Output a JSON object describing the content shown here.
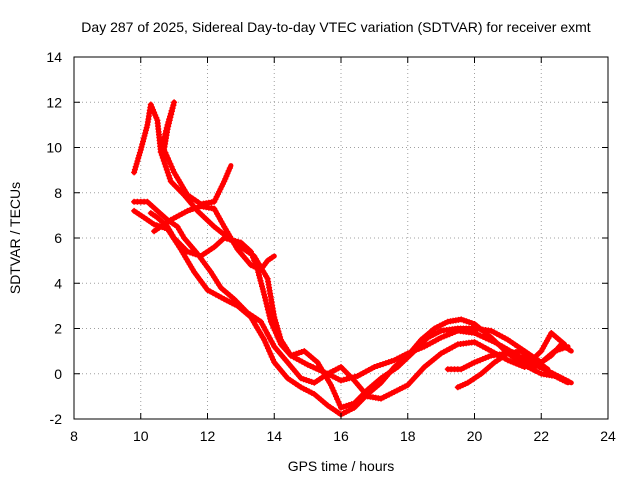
{
  "chart_data": {
    "type": "line",
    "title": "Day 287 of 2025, Sidereal Day-to-day VTEC variation (SDTVAR) for receiver exmt",
    "xlabel": "GPS time / hours",
    "ylabel": "SDTVAR / TECUs",
    "xlim": [
      8,
      24
    ],
    "ylim": [
      -2,
      14
    ],
    "xticks": [
      "8",
      "10",
      "12",
      "14",
      "16",
      "18",
      "20",
      "22",
      "24"
    ],
    "yticks": [
      "-2",
      "0",
      "2",
      "4",
      "6",
      "8",
      "10",
      "12",
      "14"
    ],
    "grid": true,
    "color": "#ff0000",
    "series": [
      {
        "name": "pass-1",
        "points": [
          [
            9.8,
            8.9
          ],
          [
            10.0,
            9.9
          ],
          [
            10.2,
            11.0
          ],
          [
            10.3,
            11.9
          ],
          [
            10.5,
            11.2
          ],
          [
            10.6,
            9.8
          ],
          [
            10.9,
            8.5
          ],
          [
            11.3,
            7.9
          ],
          [
            11.7,
            7.2
          ],
          [
            12.2,
            6.5
          ],
          [
            12.8,
            5.8
          ],
          [
            13.4,
            5.2
          ],
          [
            13.8,
            4.2
          ],
          [
            14.0,
            2.5
          ],
          [
            14.2,
            1.5
          ],
          [
            14.5,
            0.8
          ],
          [
            15.0,
            0.4
          ],
          [
            15.6,
            0.0
          ],
          [
            16.0,
            -0.3
          ],
          [
            16.5,
            -0.1
          ],
          [
            17.0,
            0.3
          ],
          [
            17.6,
            0.6
          ],
          [
            18.0,
            0.9
          ],
          [
            18.5,
            1.2
          ],
          [
            19.0,
            1.6
          ],
          [
            19.5,
            1.9
          ],
          [
            20.0,
            1.8
          ],
          [
            20.6,
            1.4
          ],
          [
            21.2,
            0.9
          ],
          [
            21.8,
            0.3
          ],
          [
            22.3,
            0.8
          ],
          [
            22.6,
            1.3
          ],
          [
            22.9,
            1.0
          ]
        ]
      },
      {
        "name": "pass-2",
        "points": [
          [
            10.3,
            7.1
          ],
          [
            10.5,
            6.9
          ],
          [
            10.8,
            6.5
          ],
          [
            11.0,
            6.0
          ],
          [
            11.4,
            5.4
          ],
          [
            11.8,
            5.2
          ],
          [
            12.2,
            5.6
          ],
          [
            12.5,
            6.0
          ],
          [
            13.0,
            5.8
          ],
          [
            13.3,
            5.4
          ],
          [
            13.5,
            4.6
          ],
          [
            13.7,
            3.5
          ],
          [
            13.9,
            2.3
          ],
          [
            14.2,
            1.3
          ],
          [
            14.5,
            0.8
          ],
          [
            14.9,
            1.0
          ],
          [
            15.3,
            0.5
          ],
          [
            15.7,
            -0.5
          ],
          [
            16.0,
            -1.5
          ],
          [
            16.4,
            -1.3
          ],
          [
            16.8,
            -0.7
          ],
          [
            17.2,
            -0.2
          ],
          [
            17.7,
            0.3
          ],
          [
            18.2,
            1.0
          ],
          [
            18.6,
            1.6
          ],
          [
            19.0,
            1.9
          ],
          [
            19.5,
            2.0
          ],
          [
            20.0,
            2.0
          ],
          [
            20.5,
            1.9
          ],
          [
            21.0,
            1.5
          ],
          [
            21.5,
            1.0
          ],
          [
            22.0,
            0.5
          ],
          [
            22.4,
            1.0
          ],
          [
            22.8,
            1.2
          ]
        ]
      },
      {
        "name": "pass-3",
        "points": [
          [
            9.8,
            7.2
          ],
          [
            10.1,
            6.9
          ],
          [
            10.4,
            6.6
          ],
          [
            10.8,
            6.4
          ],
          [
            11.2,
            5.5
          ],
          [
            11.6,
            4.5
          ],
          [
            12.0,
            3.7
          ],
          [
            12.5,
            3.3
          ],
          [
            12.9,
            3.0
          ],
          [
            13.3,
            2.5
          ],
          [
            13.7,
            1.5
          ],
          [
            14.0,
            0.5
          ],
          [
            14.4,
            -0.2
          ],
          [
            14.8,
            -0.6
          ],
          [
            15.2,
            -0.9
          ],
          [
            15.6,
            -1.4
          ],
          [
            16.0,
            -1.8
          ],
          [
            16.4,
            -1.5
          ],
          [
            16.8,
            -0.9
          ],
          [
            17.2,
            -0.4
          ],
          [
            17.6,
            0.3
          ],
          [
            18.0,
            0.8
          ],
          [
            18.4,
            1.5
          ],
          [
            18.8,
            2.0
          ],
          [
            19.2,
            2.3
          ],
          [
            19.6,
            2.4
          ],
          [
            20.0,
            2.2
          ],
          [
            20.5,
            1.6
          ],
          [
            21.0,
            0.9
          ],
          [
            21.6,
            0.3
          ],
          [
            22.0,
            0.0
          ],
          [
            22.4,
            -0.1
          ],
          [
            22.8,
            -0.4
          ]
        ]
      },
      {
        "name": "pass-4",
        "points": [
          [
            9.8,
            7.6
          ],
          [
            10.2,
            7.6
          ],
          [
            10.5,
            7.2
          ],
          [
            10.8,
            6.8
          ],
          [
            11.1,
            6.5
          ],
          [
            11.3,
            6.0
          ],
          [
            11.7,
            5.3
          ],
          [
            12.1,
            4.5
          ],
          [
            12.4,
            3.8
          ],
          [
            12.8,
            3.3
          ],
          [
            13.2,
            2.7
          ],
          [
            13.6,
            2.3
          ],
          [
            14.0,
            1.2
          ],
          [
            14.4,
            0.5
          ],
          [
            14.8,
            -0.2
          ],
          [
            15.2,
            -0.4
          ],
          [
            15.6,
            0.0
          ],
          [
            16.0,
            0.3
          ],
          [
            16.4,
            -0.3
          ],
          [
            16.8,
            -1.0
          ],
          [
            17.2,
            -1.1
          ],
          [
            17.6,
            -0.8
          ],
          [
            18.0,
            -0.5
          ],
          [
            18.5,
            0.3
          ],
          [
            19.0,
            0.9
          ],
          [
            19.5,
            1.3
          ],
          [
            20.0,
            1.4
          ],
          [
            20.5,
            1.0
          ],
          [
            21.0,
            0.6
          ],
          [
            21.5,
            0.3
          ],
          [
            22.0,
            1.0
          ],
          [
            22.3,
            1.8
          ],
          [
            22.7,
            1.3
          ]
        ]
      },
      {
        "name": "pass-5",
        "points": [
          [
            10.6,
            9.8
          ],
          [
            10.8,
            11.0
          ],
          [
            11.0,
            12.0
          ],
          [
            10.8,
            10.8
          ],
          [
            10.7,
            9.9
          ],
          [
            11.0,
            8.9
          ],
          [
            11.4,
            7.9
          ],
          [
            11.8,
            7.5
          ],
          [
            12.2,
            7.6
          ],
          [
            12.5,
            8.5
          ],
          [
            12.7,
            9.2
          ]
        ]
      },
      {
        "name": "pass-6",
        "points": [
          [
            10.4,
            6.3
          ],
          [
            10.9,
            6.8
          ],
          [
            11.4,
            7.2
          ],
          [
            11.8,
            7.4
          ],
          [
            12.2,
            7.3
          ],
          [
            12.5,
            6.5
          ],
          [
            12.9,
            5.5
          ],
          [
            13.3,
            4.8
          ],
          [
            13.6,
            4.6
          ],
          [
            13.8,
            5.0
          ],
          [
            14.0,
            5.2
          ]
        ]
      },
      {
        "name": "pass-7",
        "points": [
          [
            19.2,
            0.2
          ],
          [
            19.6,
            0.2
          ],
          [
            20.0,
            0.5
          ],
          [
            20.5,
            0.8
          ],
          [
            21.0,
            0.9
          ],
          [
            21.5,
            0.7
          ],
          [
            21.8,
            0.4
          ],
          [
            22.1,
            0.2
          ],
          [
            22.5,
            -0.1
          ],
          [
            22.9,
            -0.4
          ]
        ]
      },
      {
        "name": "pass-8",
        "points": [
          [
            19.5,
            -0.6
          ],
          [
            19.8,
            -0.4
          ],
          [
            20.2,
            0.0
          ],
          [
            20.6,
            0.5
          ],
          [
            21.0,
            0.9
          ],
          [
            21.4,
            1.0
          ],
          [
            21.8,
            0.6
          ],
          [
            22.2,
            0.2
          ]
        ]
      }
    ]
  }
}
